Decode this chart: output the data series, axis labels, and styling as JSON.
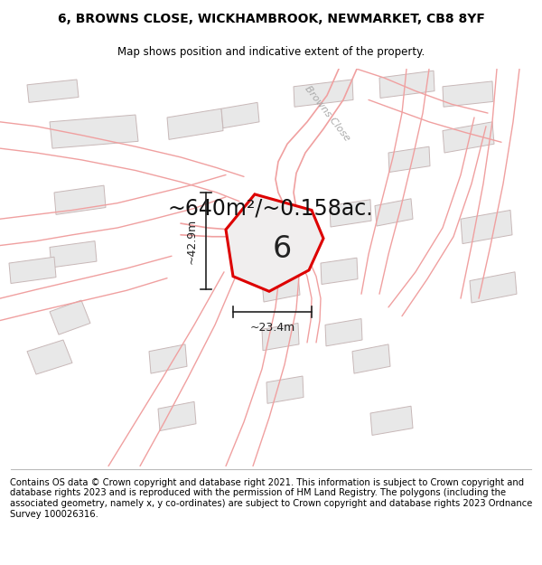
{
  "title": "6, BROWNS CLOSE, WICKHAMBROOK, NEWMARKET, CB8 8YF",
  "subtitle": "Map shows position and indicative extent of the property.",
  "area_text": "~640m²/~0.158ac.",
  "dim_width": "~23.4m",
  "dim_height": "~42.9m",
  "plot_number": "6",
  "footer": "Contains OS data © Crown copyright and database right 2021. This information is subject to Crown copyright and database rights 2023 and is reproduced with the permission of HM Land Registry. The polygons (including the associated geometry, namely x, y co-ordinates) are subject to Crown copyright and database rights 2023 Ordnance Survey 100026316.",
  "map_bg": "#ffffff",
  "plot_fill": "#f0eeee",
  "plot_edge_color": "#dd0000",
  "road_color": "#f0a0a0",
  "building_fill": "#e8e8e8",
  "building_edge": "#c8b8b8",
  "road_label": "Browns Close",
  "title_fontsize": 10,
  "subtitle_fontsize": 8.5,
  "footer_fontsize": 7.2,
  "area_fontsize": 17
}
